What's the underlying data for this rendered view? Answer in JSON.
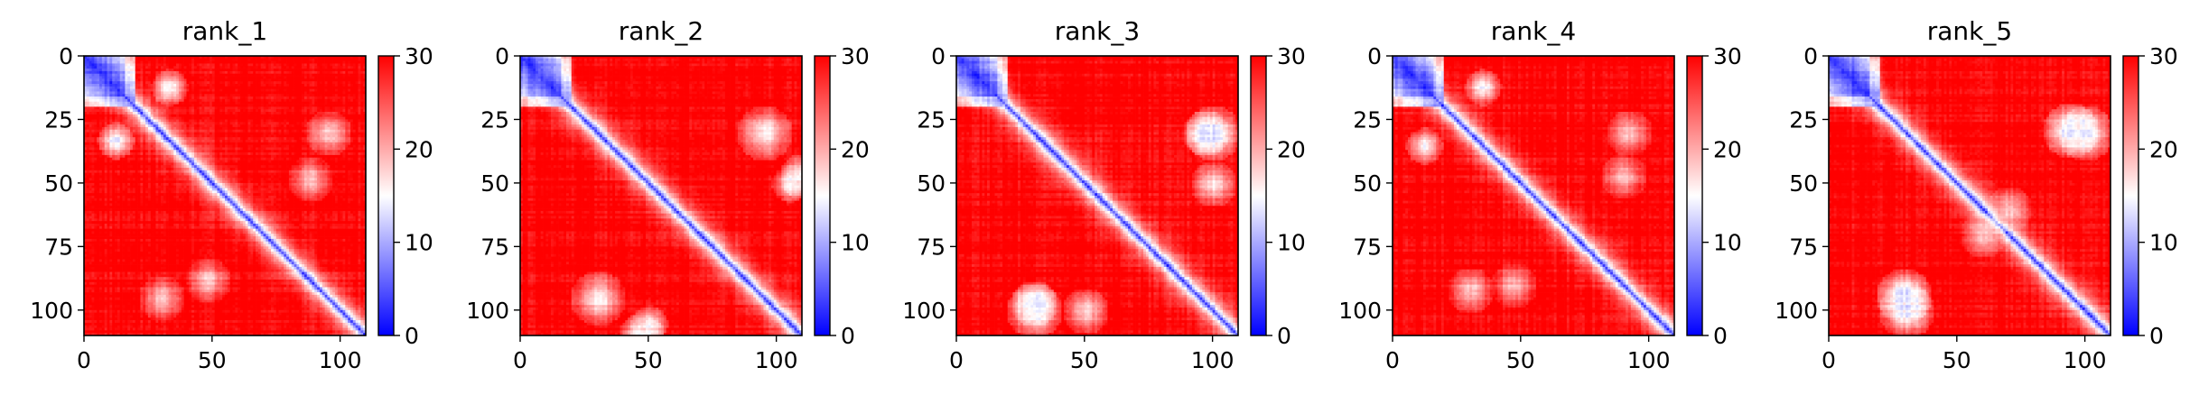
{
  "chart_data": [
    {
      "type": "heatmap",
      "title": "rank_1",
      "n": 110,
      "xticks": [
        0,
        50,
        100
      ],
      "yticks": [
        0,
        25,
        50,
        75,
        100
      ],
      "xlim": [
        0,
        110
      ],
      "ylim": [
        110,
        0
      ],
      "colorbar": {
        "min": 0,
        "max": 30,
        "ticks": [
          0,
          10,
          20,
          30
        ],
        "cmap": "bwr"
      },
      "blobs": [
        {
          "x": 33,
          "y": 12,
          "value": 14,
          "r": 4
        },
        {
          "x": 48,
          "y": 88,
          "value": 19,
          "r": 5
        },
        {
          "x": 95,
          "y": 30,
          "value": 18,
          "r": 5
        }
      ]
    },
    {
      "type": "heatmap",
      "title": "rank_2",
      "n": 110,
      "xticks": [
        0,
        50,
        100
      ],
      "yticks": [
        0,
        25,
        50,
        75,
        100
      ],
      "xlim": [
        0,
        110
      ],
      "ylim": [
        110,
        0
      ],
      "colorbar": {
        "min": 0,
        "max": 30,
        "ticks": [
          0,
          10,
          20,
          30
        ],
        "cmap": "bwr"
      },
      "blobs": [
        {
          "x": 95,
          "y": 30,
          "value": 16,
          "r": 6
        },
        {
          "x": 110,
          "y": 47,
          "value": 14,
          "r": 5
        },
        {
          "x": 50,
          "y": 105,
          "value": 16,
          "r": 4
        }
      ]
    },
    {
      "type": "heatmap",
      "title": "rank_3",
      "n": 110,
      "xticks": [
        0,
        50,
        100
      ],
      "yticks": [
        0,
        25,
        50,
        75,
        100
      ],
      "xlim": [
        0,
        110
      ],
      "ylim": [
        110,
        0
      ],
      "colorbar": {
        "min": 0,
        "max": 30,
        "ticks": [
          0,
          10,
          20,
          30
        ],
        "cmap": "bwr"
      },
      "blobs": [
        {
          "x": 97,
          "y": 30,
          "value": 13,
          "r": 5
        },
        {
          "x": 30,
          "y": 100,
          "value": 14,
          "r": 6
        },
        {
          "x": 100,
          "y": 50,
          "value": 17,
          "r": 5
        }
      ]
    },
    {
      "type": "heatmap",
      "title": "rank_4",
      "n": 110,
      "xticks": [
        0,
        50,
        100
      ],
      "yticks": [
        0,
        25,
        50,
        75,
        100
      ],
      "xlim": [
        0,
        110
      ],
      "ylim": [
        110,
        0
      ],
      "colorbar": {
        "min": 0,
        "max": 30,
        "ticks": [
          0,
          10,
          20,
          30
        ],
        "cmap": "bwr"
      },
      "blobs": [
        {
          "x": 35,
          "y": 12,
          "value": 15,
          "r": 4
        },
        {
          "x": 47,
          "y": 90,
          "value": 19,
          "r": 5
        },
        {
          "x": 92,
          "y": 30,
          "value": 18,
          "r": 5
        }
      ]
    },
    {
      "type": "heatmap",
      "title": "rank_5",
      "n": 110,
      "xticks": [
        0,
        50,
        100
      ],
      "yticks": [
        0,
        25,
        50,
        75,
        100
      ],
      "xlim": [
        0,
        110
      ],
      "ylim": [
        110,
        0
      ],
      "colorbar": {
        "min": 0,
        "max": 30,
        "ticks": [
          0,
          10,
          20,
          30
        ],
        "cmap": "bwr"
      },
      "blobs": [
        {
          "x": 94,
          "y": 29,
          "value": 12,
          "r": 6
        },
        {
          "x": 30,
          "y": 100,
          "value": 14,
          "r": 6
        },
        {
          "x": 70,
          "y": 60,
          "value": 19,
          "r": 5
        }
      ]
    }
  ]
}
